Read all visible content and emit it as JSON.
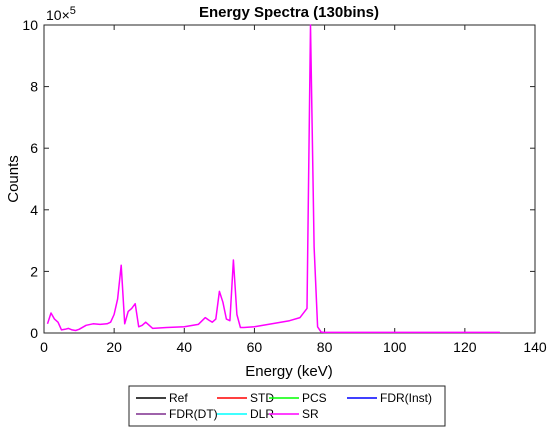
{
  "chart_data": {
    "type": "line",
    "title": "Energy Spectra (130bins)",
    "xlabel": "Energy (keV)",
    "ylabel": "Counts",
    "xlim": [
      0,
      140
    ],
    "ylim": [
      0,
      1000000
    ],
    "x_ticks": [
      0,
      20,
      40,
      60,
      80,
      100,
      120,
      140
    ],
    "y_ticks": [
      0,
      2,
      4,
      6,
      8,
      10
    ],
    "y_tick_labels": [
      "0",
      "2",
      "4",
      "6",
      "8",
      "10"
    ],
    "y_exponent": {
      "base": "10",
      "power": "5"
    },
    "grid": false,
    "legend_placement": "bottom-outside",
    "series": [
      {
        "name": "Ref",
        "color": "#000000",
        "visible": false
      },
      {
        "name": "STD",
        "color": "#ff0000",
        "visible": false
      },
      {
        "name": "PCS",
        "color": "#00ff00",
        "visible": false
      },
      {
        "name": "FDR(Inst)",
        "color": "#0000ff",
        "visible": false
      },
      {
        "name": "FDR(DT)",
        "color": "#7e2f8e",
        "visible": false
      },
      {
        "name": "DLR",
        "color": "#00ffff",
        "visible": false
      },
      {
        "name": "SR",
        "color": "#ff00ff",
        "visible": true,
        "x": [
          1,
          2,
          3,
          4,
          5,
          6,
          7,
          8,
          9,
          10,
          12,
          14,
          16,
          18,
          19,
          20,
          21,
          22,
          23,
          24,
          25,
          26,
          27,
          28,
          29,
          30,
          31,
          35,
          40,
          44,
          46,
          47,
          48,
          49,
          50,
          51,
          52,
          53,
          54,
          55,
          56,
          57,
          60,
          65,
          70,
          73,
          75,
          76,
          77,
          78,
          79,
          80,
          90,
          100,
          110,
          120,
          130
        ],
        "y": [
          30000,
          65000,
          45000,
          35000,
          10000,
          12000,
          15000,
          10000,
          8000,
          12000,
          25000,
          30000,
          28000,
          30000,
          35000,
          60000,
          110000,
          220000,
          30000,
          70000,
          80000,
          95000,
          20000,
          25000,
          35000,
          25000,
          15000,
          18000,
          20000,
          28000,
          50000,
          42000,
          35000,
          45000,
          135000,
          100000,
          45000,
          40000,
          237000,
          60000,
          18000,
          18000,
          20000,
          30000,
          40000,
          50000,
          80000,
          1000000,
          280000,
          20000,
          3000,
          2000,
          2000,
          2000,
          2000,
          2000,
          2000
        ]
      }
    ]
  }
}
